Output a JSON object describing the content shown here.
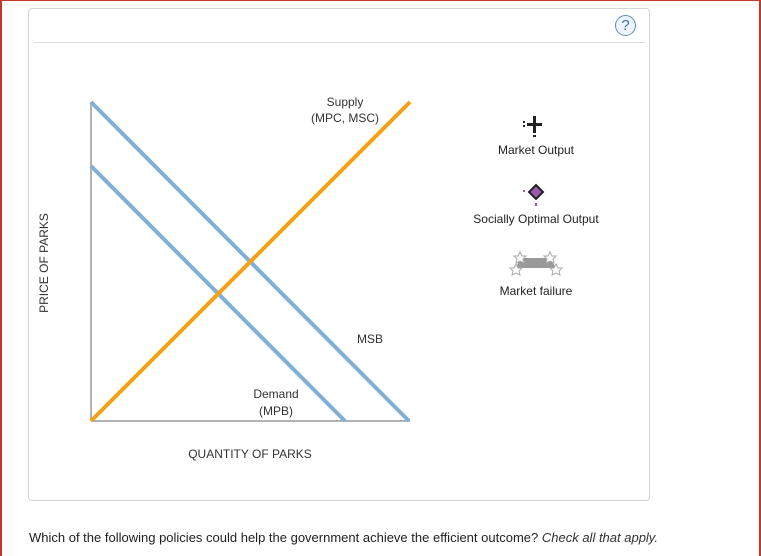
{
  "help": {
    "label": "?"
  },
  "graph": {
    "y_axis_label": "PRICE OF PARKS",
    "x_axis_label": "QUANTITY OF PARKS",
    "supply_label_line1": "Supply",
    "supply_label_line2": "(MPC, MSC)",
    "demand_label_line1": "Demand",
    "demand_label_line2": "(MPB)",
    "msb_label": "MSB",
    "colors": {
      "supply": "#f7a11a",
      "demand": "#7fb0d8",
      "axis": "#999999"
    }
  },
  "tools": [
    {
      "label": "Market Output",
      "icon": "plus-marker-icon"
    },
    {
      "label": "Socially Optimal Output",
      "icon": "diamond-marker-icon",
      "color": "#9b59b6"
    },
    {
      "label": "Market failure",
      "icon": "shaded-region-icon"
    }
  ],
  "question": {
    "text": "Which of the following policies could help the government achieve the efficient outcome?",
    "instruction": "Check all that apply."
  }
}
